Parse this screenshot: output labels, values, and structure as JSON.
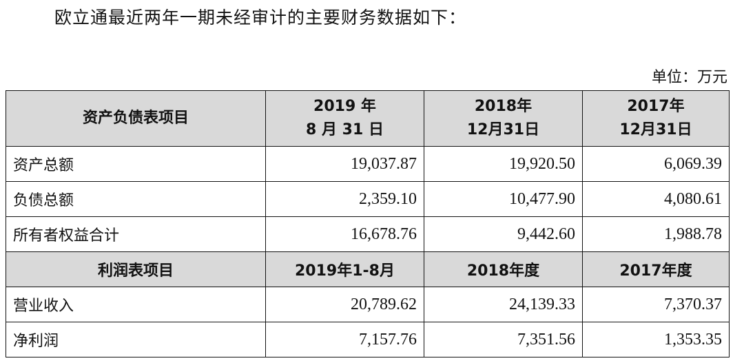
{
  "intro": "欧立通最近两年一期未经审计的主要财务数据如下：",
  "unit": "单位：万元",
  "balance": {
    "header": {
      "label": "资产负债表项目",
      "col1_line1": "2019 年",
      "col1_line2": "8 月 31 日",
      "col2_line1": "2018年",
      "col2_line2": "12月31日",
      "col3_line1": "2017年",
      "col3_line2": "12月31日"
    },
    "rows": [
      {
        "label": "资产总额",
        "v1": "19,037.87",
        "v2": "19,920.50",
        "v3": "6,069.39"
      },
      {
        "label": "负债总额",
        "v1": "2,359.10",
        "v2": "10,477.90",
        "v3": "4,080.61"
      },
      {
        "label": "所有者权益合计",
        "v1": "16,678.76",
        "v2": "9,442.60",
        "v3": "1,988.78"
      }
    ]
  },
  "income": {
    "header": {
      "label": "利润表项目",
      "col1": "2019年1-8月",
      "col2": "2018年度",
      "col3": "2017年度"
    },
    "rows": [
      {
        "label": "营业收入",
        "v1": "20,789.62",
        "v2": "24,139.33",
        "v3": "7,370.37"
      },
      {
        "label": "净利润",
        "v1": "7,157.76",
        "v2": "7,351.56",
        "v3": "1,353.35"
      }
    ]
  }
}
